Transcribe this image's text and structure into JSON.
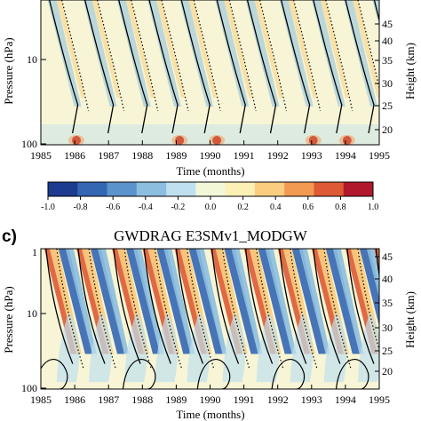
{
  "colorbar": {
    "ticks": [
      -1.0,
      -0.8,
      -0.6,
      -0.4,
      -0.2,
      0.0,
      0.2,
      0.4,
      0.6,
      0.8,
      1.0
    ],
    "tick_labels": [
      "-1.0",
      "-0.8",
      "-0.6",
      "-0.4",
      "-0.2",
      "0.0",
      "0.2",
      "0.4",
      "0.6",
      "0.8",
      "1.0"
    ],
    "colors": [
      "#1d3b8f",
      "#3366b3",
      "#5b94cc",
      "#8bbedf",
      "#bfe0ee",
      "#f2f7d8",
      "#fdf0b5",
      "#fbcd7f",
      "#f29a52",
      "#dd5a35",
      "#b2182b"
    ]
  },
  "chart_data": [
    {
      "type": "heatmap",
      "panel_label": "",
      "title": "",
      "xlabel": "Time (months)",
      "ylabel": "Pressure (hPa)",
      "ylabel_right": "Height (km)",
      "x_ticks": [
        "1985",
        "1986",
        "1987",
        "1988",
        "1989",
        "1990",
        "1991",
        "1992",
        "1993",
        "1994",
        "1995"
      ],
      "x_range": [
        1985,
        1995
      ],
      "y_ticks_left": [
        "10",
        "100"
      ],
      "y_ticks_right": [
        "20",
        "25",
        "30",
        "35",
        "40",
        "45"
      ],
      "y_scale": "log",
      "descent_phases_years": [
        1985.2,
        1986.25,
        1987.25,
        1988.15,
        1989.1,
        1990.15,
        1991.05,
        1992.05,
        1993.0,
        1993.95,
        1994.8
      ],
      "contours": "solid (positive) and dotted (negative)"
    },
    {
      "type": "heatmap",
      "panel_label": "c)",
      "title": "GWDRAG E3SMv1_MODGW",
      "xlabel": "Time (months)",
      "ylabel": "Pressure (hPa)",
      "ylabel_right": "Height (km)",
      "x_ticks": [
        "1985",
        "1986",
        "1987",
        "1988",
        "1989",
        "1990",
        "1991",
        "1992",
        "1993",
        "1994",
        "1995"
      ],
      "x_range": [
        1985,
        1995
      ],
      "y_ticks_left": [
        "1",
        "10",
        "100"
      ],
      "y_ticks_right": [
        "20",
        "25",
        "30",
        "35",
        "40",
        "45"
      ],
      "y_scale": "log",
      "descent_phases_years": [
        1985.1,
        1986.05,
        1987.1,
        1988.0,
        1988.95,
        1990.0,
        1991.0,
        1992.0,
        1993.0,
        1994.0,
        1994.85
      ],
      "contours": "solid (positive) and dotted (negative)"
    }
  ]
}
